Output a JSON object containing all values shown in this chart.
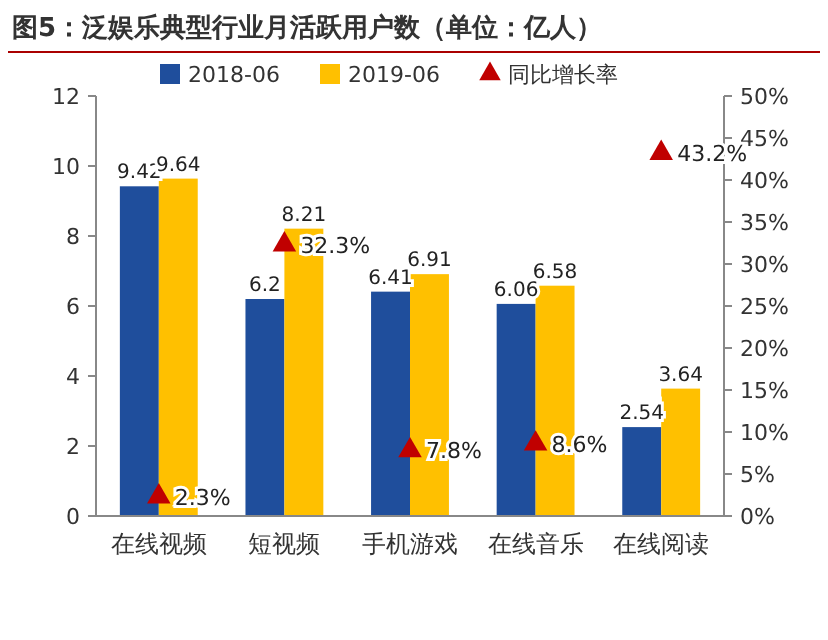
{
  "chart_data": {
    "type": "bar",
    "title": "图5：泛娱乐典型行业月活跃用户数（单位：亿人）",
    "categories": [
      "在线视频",
      "短视频",
      "手机游戏",
      "在线音乐",
      "在线阅读"
    ],
    "series": [
      {
        "name": "2018-06",
        "color": "#1f4e9c",
        "values": [
          9.42,
          6.2,
          6.41,
          6.06,
          2.54
        ]
      },
      {
        "name": "2019-06",
        "color": "#ffc000",
        "values": [
          9.64,
          8.21,
          6.91,
          6.58,
          3.64
        ]
      },
      {
        "name": "同比增长率",
        "type": "scatter",
        "axis": "y2",
        "marker": "triangle",
        "color": "#c00000",
        "x": [
          "在线视频",
          "短视频",
          "手机游戏",
          "在线音乐",
          "在线阅读"
        ],
        "values": [
          2.3,
          32.3,
          7.8,
          8.6,
          43.2
        ],
        "value_labels": [
          "2.3%",
          "32.3%",
          "7.8%",
          "8.6%",
          "43.2%"
        ]
      }
    ],
    "ylim": [
      0,
      12
    ],
    "yticks": [
      0,
      2,
      4,
      6,
      8,
      10,
      12
    ],
    "y2lim": [
      0,
      50
    ],
    "y2ticks": [
      {
        "value": 0,
        "label": "0%"
      },
      {
        "value": 5,
        "label": "5%"
      },
      {
        "value": 10,
        "label": "10%"
      },
      {
        "value": 15,
        "label": "15%"
      },
      {
        "value": 20,
        "label": "20%"
      },
      {
        "value": 25,
        "label": "25%"
      },
      {
        "value": 30,
        "label": "30%"
      },
      {
        "value": 35,
        "label": "35%"
      },
      {
        "value": 40,
        "label": "40%"
      },
      {
        "value": 45,
        "label": "45%"
      },
      {
        "value": 50,
        "label": "50%"
      }
    ],
    "data_labels": true,
    "legend": "top",
    "grid": false
  }
}
